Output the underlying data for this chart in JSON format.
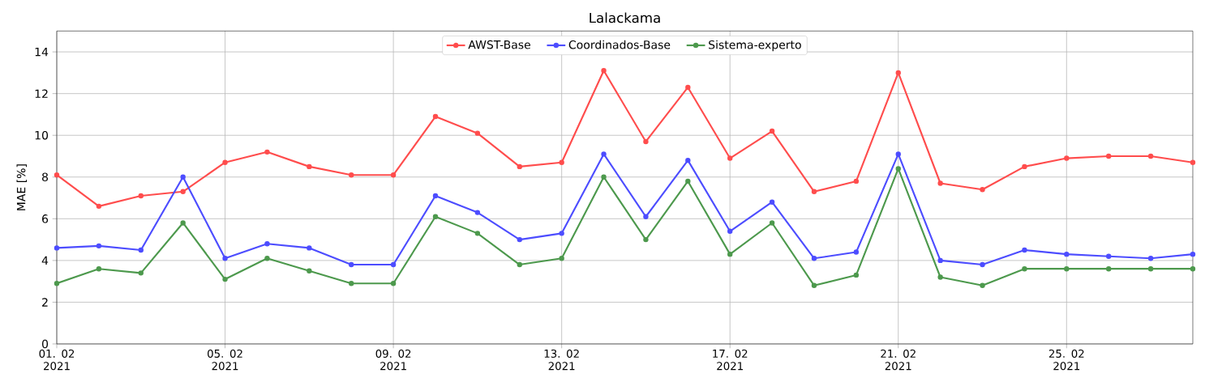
{
  "chart_data": {
    "type": "line",
    "title": "Lalackama",
    "ylabel": "MAE [%]",
    "x": [
      "2021-02-01",
      "2021-02-02",
      "2021-02-03",
      "2021-02-04",
      "2021-02-05",
      "2021-02-06",
      "2021-02-07",
      "2021-02-08",
      "2021-02-09",
      "2021-02-10",
      "2021-02-11",
      "2021-02-12",
      "2021-02-13",
      "2021-02-14",
      "2021-02-15",
      "2021-02-16",
      "2021-02-17",
      "2021-02-18",
      "2021-02-19",
      "2021-02-20",
      "2021-02-21",
      "2021-02-22",
      "2021-02-23",
      "2021-02-24",
      "2021-02-25",
      "2021-02-26",
      "2021-02-27",
      "2021-02-28"
    ],
    "series": [
      {
        "name": "AWST-Base",
        "color": "#ff4d4d",
        "values": [
          8.1,
          6.6,
          7.1,
          7.3,
          8.7,
          9.2,
          8.5,
          8.1,
          8.1,
          10.9,
          10.1,
          8.5,
          8.7,
          13.1,
          9.7,
          12.3,
          8.9,
          10.2,
          7.3,
          7.8,
          13.0,
          7.7,
          7.4,
          8.5,
          8.9,
          9.0,
          9.0,
          8.7
        ]
      },
      {
        "name": "Coordinados-Base",
        "color": "#4d4dff",
        "values": [
          4.6,
          4.7,
          4.5,
          8.0,
          4.1,
          4.8,
          4.6,
          3.8,
          3.8,
          7.1,
          6.3,
          5.0,
          5.3,
          9.1,
          6.1,
          8.8,
          5.4,
          6.8,
          4.1,
          4.4,
          9.1,
          4.0,
          3.8,
          4.5,
          4.3,
          4.2,
          4.1,
          4.3
        ]
      },
      {
        "name": "Sistema-experto",
        "color": "#4d994d",
        "values": [
          2.9,
          3.6,
          3.4,
          5.8,
          3.1,
          4.1,
          3.5,
          2.9,
          2.9,
          6.1,
          5.3,
          3.8,
          4.1,
          8.0,
          5.0,
          7.8,
          4.3,
          5.8,
          2.8,
          3.3,
          8.4,
          3.2,
          2.8,
          3.6,
          3.6,
          3.6,
          3.6,
          3.6
        ]
      }
    ],
    "xlim": [
      "2021-02-01",
      "2021-02-28"
    ],
    "xticks": [
      {
        "value": "2021-02-01",
        "label": "01. 02 2021"
      },
      {
        "value": "2021-02-05",
        "label": "05. 02 2021"
      },
      {
        "value": "2021-02-09",
        "label": "09. 02 2021"
      },
      {
        "value": "2021-02-13",
        "label": "13. 02 2021"
      },
      {
        "value": "2021-02-17",
        "label": "17. 02 2021"
      },
      {
        "value": "2021-02-21",
        "label": "21. 02 2021"
      },
      {
        "value": "2021-02-25",
        "label": "25. 02 2021"
      }
    ],
    "ylim": [
      0,
      15
    ],
    "yticks": [
      0,
      2,
      4,
      6,
      8,
      10,
      12,
      14
    ],
    "grid": true,
    "legend": "top",
    "marker": "circle",
    "line_style": "solid"
  }
}
